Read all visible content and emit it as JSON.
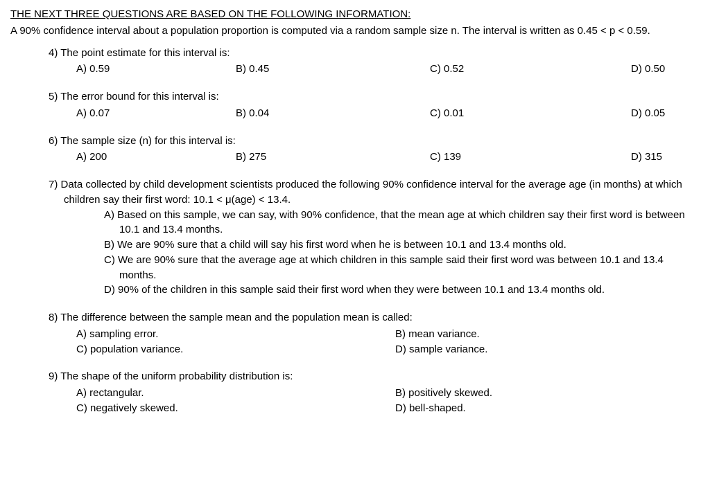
{
  "header": "THE NEXT THREE QUESTIONS ARE BASED ON THE FOLLOWING INFORMATION:",
  "intro": "A 90% confidence interval about a population proportion is computed via a random sample size n. The interval is written as 0.45 < p < 0.59.",
  "q4": {
    "text": "4) The point estimate for this interval is:",
    "a": "A) 0.59",
    "b": "B) 0.45",
    "c": "C) 0.52",
    "d": "D) 0.50"
  },
  "q5": {
    "text": "5) The error bound for this interval is:",
    "a": "A) 0.07",
    "b": "B) 0.04",
    "c": "C) 0.01",
    "d": "D) 0.05"
  },
  "q6": {
    "text": "6) The sample size (n) for this interval is:",
    "a": "A) 200",
    "b": "B) 275",
    "c": "C) 139",
    "d": "D) 315"
  },
  "q7": {
    "text": "7) Data collected by child development scientists produced the following 90% confidence interval for the average age (in months) at which children say their first word:  10.1 < μ(age) < 13.4.",
    "a": "A) Based on this sample, we can say, with 90% confidence, that the mean age at which children say their first word is between 10.1 and 13.4 months.",
    "b": "B) We are 90% sure that a child will say his first word when he is between 10.1 and 13.4 months old.",
    "c": "C) We are 90% sure that the average age at which children in this sample said their first word was between 10.1 and 13.4 months.",
    "d": "D) 90% of the children in this sample said their first word when they were between 10.1 and 13.4 months old."
  },
  "q8": {
    "text": "8) The difference between the sample mean and the population mean is called:",
    "a": "A) sampling error.",
    "b": "B) mean variance.",
    "c": "C) population variance.",
    "d": "D) sample variance."
  },
  "q9": {
    "text": "9) The shape of the uniform probability distribution is:",
    "a": "A) rectangular.",
    "b": "B) positively skewed.",
    "c": "C) negatively skewed.",
    "d": "D) bell-shaped."
  }
}
